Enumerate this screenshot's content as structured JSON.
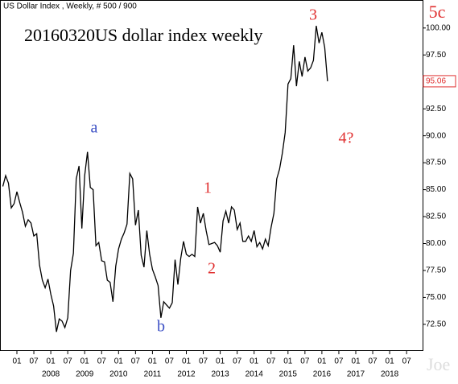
{
  "chart_data": {
    "type": "line",
    "title": "US Dollar Index , Weekly, # 500 / 900",
    "subtitle": "20160320US dollar index weekly",
    "watermark": "Joe",
    "annotations": [
      "a",
      "b",
      "1",
      "2",
      "3",
      "4?",
      "5c"
    ],
    "last_price": 95.06,
    "color": "#000000",
    "x": [
      "2006-08",
      "2006-09",
      "2006-10",
      "2006-11",
      "2006-12",
      "2007-01",
      "2007-02",
      "2007-03",
      "2007-04",
      "2007-05",
      "2007-06",
      "2007-07",
      "2007-08",
      "2007-09",
      "2007-10",
      "2007-11",
      "2007-12",
      "2008-01",
      "2008-02",
      "2008-03",
      "2008-04",
      "2008-05",
      "2008-06",
      "2008-07",
      "2008-08",
      "2008-09",
      "2008-10",
      "2008-11",
      "2008-12",
      "2009-01",
      "2009-02",
      "2009-03",
      "2009-04",
      "2009-05",
      "2009-06",
      "2009-07",
      "2009-08",
      "2009-09",
      "2009-10",
      "2009-11",
      "2009-12",
      "2010-01",
      "2010-02",
      "2010-03",
      "2010-04",
      "2010-05",
      "2010-06",
      "2010-07",
      "2010-08",
      "2010-09",
      "2010-10",
      "2010-11",
      "2010-12",
      "2011-01",
      "2011-02",
      "2011-03",
      "2011-04",
      "2011-05",
      "2011-06",
      "2011-07",
      "2011-08",
      "2011-09",
      "2011-10",
      "2011-11",
      "2011-12",
      "2012-01",
      "2012-02",
      "2012-03",
      "2012-04",
      "2012-05",
      "2012-06",
      "2012-07",
      "2012-08",
      "2012-09",
      "2012-10",
      "2012-11",
      "2012-12",
      "2013-01",
      "2013-02",
      "2013-03",
      "2013-04",
      "2013-05",
      "2013-06",
      "2013-07",
      "2013-08",
      "2013-09",
      "2013-10",
      "2013-11",
      "2013-12",
      "2014-01",
      "2014-02",
      "2014-03",
      "2014-04",
      "2014-05",
      "2014-06",
      "2014-07",
      "2014-08",
      "2014-09",
      "2014-10",
      "2014-11",
      "2014-12",
      "2015-01",
      "2015-02",
      "2015-03",
      "2015-04",
      "2015-05",
      "2015-06",
      "2015-07",
      "2015-08",
      "2015-09",
      "2015-10",
      "2015-11",
      "2015-12",
      "2016-01",
      "2016-02",
      "2016-03"
    ],
    "values": [
      85.3,
      86.3,
      85.6,
      83.3,
      83.7,
      84.8,
      83.8,
      82.9,
      81.6,
      82.2,
      81.9,
      80.7,
      80.9,
      78.0,
      76.6,
      75.9,
      76.7,
      75.3,
      74.2,
      71.8,
      73.0,
      72.8,
      72.2,
      73.1,
      77.5,
      79.1,
      86.0,
      87.2,
      81.4,
      86.3,
      88.5,
      85.2,
      85.0,
      79.8,
      80.1,
      78.4,
      78.3,
      76.6,
      76.4,
      74.6,
      77.9,
      79.5,
      80.4,
      81.0,
      81.8,
      86.5,
      86.0,
      81.7,
      83.1,
      78.9,
      77.8,
      81.2,
      79.0,
      77.6,
      76.9,
      76.1,
      73.1,
      74.6,
      74.3,
      74.0,
      74.5,
      78.5,
      76.2,
      78.6,
      80.2,
      79.0,
      78.8,
      79.0,
      78.8,
      83.4,
      81.9,
      82.8,
      81.2,
      79.9,
      80.0,
      80.1,
      79.8,
      79.2,
      82.1,
      83.0,
      81.9,
      83.4,
      83.1,
      81.3,
      81.9,
      80.2,
      80.2,
      80.7,
      80.2,
      81.2,
      79.7,
      80.1,
      79.5,
      80.4,
      79.8,
      81.5,
      82.8,
      86.0,
      86.9,
      88.4,
      90.3,
      94.8,
      95.3,
      98.4,
      94.6,
      96.9,
      95.5,
      97.3,
      96.0,
      96.3,
      97.0,
      100.2,
      98.6,
      99.6,
      98.2,
      95.06
    ],
    "ylim": [
      70.1,
      102.6
    ],
    "yticks": [
      {
        "value": 72.5,
        "label": "72.50"
      },
      {
        "value": 75,
        "label": "75.00"
      },
      {
        "value": 77.5,
        "label": "77.50"
      },
      {
        "value": 80,
        "label": "80.00"
      },
      {
        "value": 82.5,
        "label": "82.50"
      },
      {
        "value": 85,
        "label": "85.00"
      },
      {
        "value": 87.5,
        "label": "87.50"
      },
      {
        "value": 90,
        "label": "90.00"
      },
      {
        "value": 92.5,
        "label": "92.50"
      },
      {
        "value": 95,
        "label": "95.00"
      },
      {
        "value": 97.5,
        "label": "97.50"
      },
      {
        "value": 100,
        "label": "100.00"
      }
    ],
    "xticks": [
      {
        "value": "2007-01",
        "label": "01"
      },
      {
        "value": "2007-07",
        "label": "07"
      },
      {
        "value": "2008-01",
        "label": "01"
      },
      {
        "value": "2008-07",
        "label": "07"
      },
      {
        "value": "2009-01",
        "label": "01"
      },
      {
        "value": "2009-07",
        "label": "07"
      },
      {
        "value": "2010-01",
        "label": "01"
      },
      {
        "value": "2010-07",
        "label": "07"
      },
      {
        "value": "2011-01",
        "label": "01"
      },
      {
        "value": "2011-07",
        "label": "07"
      },
      {
        "value": "2012-01",
        "label": "01"
      },
      {
        "value": "2012-07",
        "label": "07"
      },
      {
        "value": "2013-01",
        "label": "01"
      },
      {
        "value": "2013-07",
        "label": "07"
      },
      {
        "value": "2014-01",
        "label": "01"
      },
      {
        "value": "2014-07",
        "label": "07"
      },
      {
        "value": "2015-01",
        "label": "01"
      },
      {
        "value": "2015-07",
        "label": "07"
      },
      {
        "value": "2016-01",
        "label": "01"
      },
      {
        "value": "2016-07",
        "label": "07"
      },
      {
        "value": "2017-01",
        "label": "01"
      },
      {
        "value": "2017-07",
        "label": "07"
      },
      {
        "value": "2018-01",
        "label": "01"
      },
      {
        "value": "2018-07",
        "label": "07"
      }
    ],
    "year_labels": [
      {
        "value": "2008-01",
        "label": "2008"
      },
      {
        "value": "2009-01",
        "label": "2009"
      },
      {
        "value": "2010-01",
        "label": "2010"
      },
      {
        "value": "2011-01",
        "label": "2011"
      },
      {
        "value": "2012-01",
        "label": "2012"
      },
      {
        "value": "2013-01",
        "label": "2013"
      },
      {
        "value": "2014-01",
        "label": "2014"
      },
      {
        "value": "2015-01",
        "label": "2015"
      },
      {
        "value": "2016-01",
        "label": "2016"
      },
      {
        "value": "2017-01",
        "label": "2017"
      },
      {
        "value": "2018-01",
        "label": "2018"
      }
    ]
  }
}
